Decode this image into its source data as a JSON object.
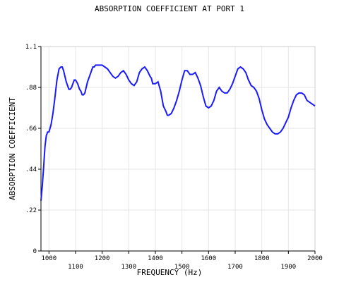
{
  "chart_data": {
    "type": "line",
    "title": "ABSORPTION COEFFICIENT AT PORT 1",
    "xlabel": "FREQUENCY (Hz)",
    "ylabel": "ABSORPTION COEFFICIENT",
    "xlim": [
      970,
      2000
    ],
    "ylim": [
      0,
      1.1
    ],
    "y_ticks": [
      0,
      0.22,
      0.44,
      0.66,
      0.88,
      1.1
    ],
    "y_tick_labels": [
      "0",
      ".22",
      ".44",
      ".66",
      ".88",
      "1.1"
    ],
    "x_ticks": [
      1000,
      1100,
      1200,
      1300,
      1400,
      1500,
      1600,
      1700,
      1800,
      1900,
      2000
    ],
    "x_tick_labels": [
      "1000",
      "1100",
      "1200",
      "1300",
      "1400",
      "1500",
      "1600",
      "1700",
      "1800",
      "1900",
      "2000"
    ],
    "grid": true,
    "line_color": "#1a1aff",
    "series": [
      {
        "x": [
          970,
          975,
          980,
          985,
          990,
          995,
          1000,
          1008,
          1015,
          1022,
          1030,
          1038,
          1045,
          1050,
          1055,
          1060,
          1065,
          1070,
          1075,
          1080,
          1085,
          1090,
          1095,
          1100,
          1108,
          1115,
          1120,
          1125,
          1130,
          1135,
          1140,
          1145,
          1150,
          1155,
          1160,
          1165,
          1170,
          1175,
          1180,
          1185,
          1190,
          1200,
          1210,
          1220,
          1230,
          1240,
          1250,
          1260,
          1270,
          1280,
          1290,
          1300,
          1310,
          1320,
          1330,
          1340,
          1350,
          1360,
          1370,
          1380,
          1385,
          1390,
          1395,
          1400,
          1410,
          1420,
          1425,
          1430,
          1440,
          1445,
          1450,
          1460,
          1470,
          1480,
          1490,
          1500,
          1510,
          1520,
          1530,
          1540,
          1550,
          1560,
          1570,
          1580,
          1590,
          1600,
          1610,
          1620,
          1630,
          1640,
          1650,
          1660,
          1670,
          1680,
          1690,
          1700,
          1710,
          1720,
          1730,
          1740,
          1750,
          1760,
          1770,
          1780,
          1790,
          1800,
          1810,
          1820,
          1830,
          1840,
          1850,
          1860,
          1870,
          1880,
          1890,
          1900,
          1910,
          1920,
          1930,
          1940,
          1950,
          1960,
          1970,
          1980,
          1990,
          2000
        ],
        "y": [
          0.27,
          0.35,
          0.45,
          0.56,
          0.62,
          0.64,
          0.64,
          0.68,
          0.74,
          0.82,
          0.92,
          0.98,
          0.99,
          0.99,
          0.97,
          0.94,
          0.91,
          0.89,
          0.87,
          0.87,
          0.88,
          0.9,
          0.92,
          0.92,
          0.9,
          0.87,
          0.86,
          0.84,
          0.84,
          0.85,
          0.88,
          0.91,
          0.93,
          0.95,
          0.97,
          0.99,
          0.99,
          1.0,
          1.0,
          1.0,
          1.0,
          1.0,
          0.99,
          0.98,
          0.96,
          0.94,
          0.93,
          0.94,
          0.96,
          0.97,
          0.95,
          0.92,
          0.9,
          0.89,
          0.91,
          0.96,
          0.98,
          0.99,
          0.97,
          0.94,
          0.93,
          0.9,
          0.9,
          0.9,
          0.91,
          0.86,
          0.82,
          0.78,
          0.75,
          0.73,
          0.73,
          0.74,
          0.77,
          0.81,
          0.86,
          0.92,
          0.97,
          0.97,
          0.95,
          0.95,
          0.96,
          0.93,
          0.89,
          0.83,
          0.78,
          0.77,
          0.78,
          0.81,
          0.86,
          0.88,
          0.86,
          0.85,
          0.85,
          0.87,
          0.9,
          0.94,
          0.98,
          0.99,
          0.98,
          0.96,
          0.92,
          0.89,
          0.88,
          0.86,
          0.82,
          0.76,
          0.71,
          0.68,
          0.66,
          0.64,
          0.63,
          0.63,
          0.64,
          0.66,
          0.69,
          0.72,
          0.77,
          0.81,
          0.84,
          0.85,
          0.85,
          0.84,
          0.81,
          0.8,
          0.79,
          0.78
        ]
      }
    ]
  }
}
